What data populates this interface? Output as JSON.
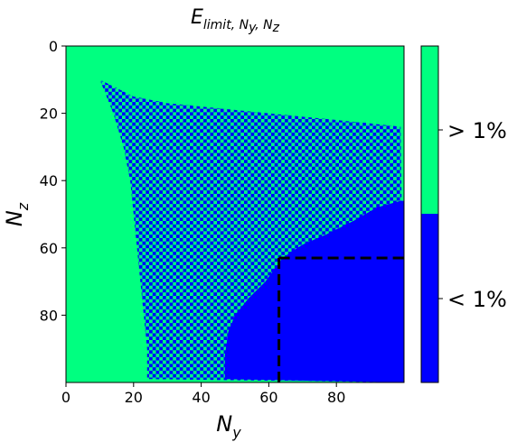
{
  "chart_data": {
    "type": "heatmap",
    "title": {
      "main": "E",
      "sub": "limit, N",
      "sub2": "y",
      "sep": ", N",
      "sub3": "z"
    },
    "xlabel": {
      "main": "N",
      "sub": "y"
    },
    "ylabel": {
      "main": "N",
      "sub": "z"
    },
    "xlim": [
      0,
      99
    ],
    "ylim": [
      99,
      0
    ],
    "xticks": [
      "0",
      "20",
      "40",
      "60",
      "80"
    ],
    "yticks": [
      "0",
      "20",
      "40",
      "60",
      "80"
    ],
    "categories": [
      "< 1%",
      "> 1%"
    ],
    "colors": {
      "above": "#00ff80",
      "below": "#0000ff",
      "dash": "#000000"
    },
    "regions": {
      "upper_boundary": [
        [
          4,
          4
        ],
        [
          10,
          10
        ],
        [
          20,
          15
        ],
        [
          30,
          17
        ],
        [
          40,
          18
        ],
        [
          50,
          19
        ],
        [
          60,
          20
        ],
        [
          70,
          21
        ],
        [
          80,
          22
        ],
        [
          90,
          23
        ],
        [
          99,
          24
        ]
      ],
      "left_boundary": [
        [
          4,
          4
        ],
        [
          10,
          10
        ],
        [
          14,
          20
        ],
        [
          17,
          30
        ],
        [
          19,
          40
        ],
        [
          20,
          50
        ],
        [
          21,
          60
        ],
        [
          22,
          70
        ],
        [
          23,
          80
        ],
        [
          24,
          90
        ],
        [
          24,
          99
        ]
      ],
      "below_region_left": [
        [
          47,
          99
        ],
        [
          47,
          92
        ],
        [
          48,
          85
        ],
        [
          50,
          80
        ],
        [
          54,
          75
        ],
        [
          59,
          70
        ],
        [
          64,
          63
        ],
        [
          70,
          59
        ],
        [
          77,
          56
        ],
        [
          85,
          52
        ],
        [
          92,
          48
        ],
        [
          99,
          46
        ]
      ]
    },
    "threshold_lines": {
      "x": 63,
      "y": 63
    },
    "colorbar": {
      "upper_label": "> 1%",
      "lower_label": "< 1%"
    }
  }
}
